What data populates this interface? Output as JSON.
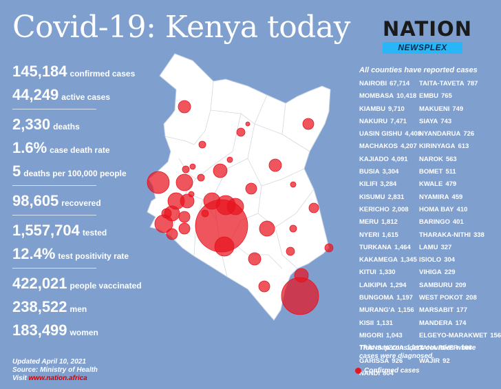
{
  "title": "Covid-19: Kenya today",
  "logo": {
    "name": "NATION",
    "sub": "NEWSPLEX"
  },
  "stats": [
    {
      "value": "145,184",
      "label": "confirmed cases"
    },
    {
      "value": "44,249",
      "label": "active cases"
    },
    {
      "value": "2,330",
      "label": "deaths"
    },
    {
      "value": "1.6%",
      "label": "case death rate"
    },
    {
      "value": "5",
      "label": "deaths per 100,000 people"
    },
    {
      "value": "98,605",
      "label": "recovered"
    },
    {
      "value": "1,557,704",
      "label": "tested"
    },
    {
      "value": "12.4%",
      "label": "test positivity rate"
    },
    {
      "value": "422,021",
      "label": "people vaccinated"
    },
    {
      "value": "238,522",
      "label": "men"
    },
    {
      "value": "183,499",
      "label": "women"
    }
  ],
  "footer": {
    "updated": "Updated April 10, 2021",
    "source": "Source: Ministry of Health",
    "visit": "Visit",
    "url": "www.nation.africa"
  },
  "counties_heading": "All counties have reported cases",
  "counties_left": [
    {
      "name": "NAIROBI",
      "cases": "67,714"
    },
    {
      "name": "MOMBASA",
      "cases": "10,418"
    },
    {
      "name": "KIAMBU",
      "cases": "9,710"
    },
    {
      "name": "NAKURU",
      "cases": "7,471"
    },
    {
      "name": "UASIN GISHU",
      "cases": "4,408"
    },
    {
      "name": "MACHAKOS",
      "cases": "4,207"
    },
    {
      "name": "KAJIADO",
      "cases": "4,091"
    },
    {
      "name": "BUSIA",
      "cases": "3,304"
    },
    {
      "name": "KILIFI",
      "cases": "3,284"
    },
    {
      "name": "KISUMU",
      "cases": "2,831"
    },
    {
      "name": "KERICHO",
      "cases": "2,008"
    },
    {
      "name": "MERU",
      "cases": "1,812"
    },
    {
      "name": "NYERI",
      "cases": "1,615"
    },
    {
      "name": "TURKANA",
      "cases": "1,464"
    },
    {
      "name": "KAKAMEGA",
      "cases": "1,345"
    },
    {
      "name": "KITUI",
      "cases": "1,330"
    },
    {
      "name": "LAIKIPIA",
      "cases": "1,294"
    },
    {
      "name": "BUNGOMA",
      "cases": "1,197"
    },
    {
      "name": "MURANG'A",
      "cases": "1,156"
    },
    {
      "name": "KISII",
      "cases": "1,131"
    },
    {
      "name": "MIGORI",
      "cases": "1,043"
    },
    {
      "name": "TRANS NZOIA",
      "cases": "1,013"
    },
    {
      "name": "GARISSA",
      "cases": "926"
    },
    {
      "name": "NANDI",
      "cases": "804"
    }
  ],
  "counties_right": [
    {
      "name": "TAITA-TAVETA",
      "cases": "787"
    },
    {
      "name": "EMBU",
      "cases": "765"
    },
    {
      "name": "MAKUENI",
      "cases": "749"
    },
    {
      "name": "SIAYA",
      "cases": "743"
    },
    {
      "name": "NYANDARUA",
      "cases": "726"
    },
    {
      "name": "KIRINYAGA",
      "cases": "613"
    },
    {
      "name": "NAROK",
      "cases": "563"
    },
    {
      "name": "BOMET",
      "cases": "511"
    },
    {
      "name": "KWALE",
      "cases": "479"
    },
    {
      "name": "NYAMIRA",
      "cases": "459"
    },
    {
      "name": "HOMA BAY",
      "cases": "410"
    },
    {
      "name": "BARINGO",
      "cases": "401"
    },
    {
      "name": "THARAKA-NITHI",
      "cases": "338"
    },
    {
      "name": "LAMU",
      "cases": "327"
    },
    {
      "name": "ISIOLO",
      "cases": "304"
    },
    {
      "name": "VIHIGA",
      "cases": "229"
    },
    {
      "name": "SAMBURU",
      "cases": "209"
    },
    {
      "name": "WEST POKOT",
      "cases": "208"
    },
    {
      "name": "MARSABIT",
      "cases": "177"
    },
    {
      "name": "MANDERA",
      "cases": "174"
    },
    {
      "name": "ELGEYO-MARAKWET",
      "cases": "156"
    },
    {
      "name": "TANA RIVER",
      "cases": "106"
    },
    {
      "name": "WAJIR",
      "cases": "92"
    }
  ],
  "map_note": "This map considers counties where cases were diagnosed.",
  "legend_label": "Confirmed cases",
  "colors": {
    "background": "#7f9fcf",
    "bubble": "#e8141e",
    "land": "#ffffff",
    "newsplex": "#29b6f6"
  }
}
